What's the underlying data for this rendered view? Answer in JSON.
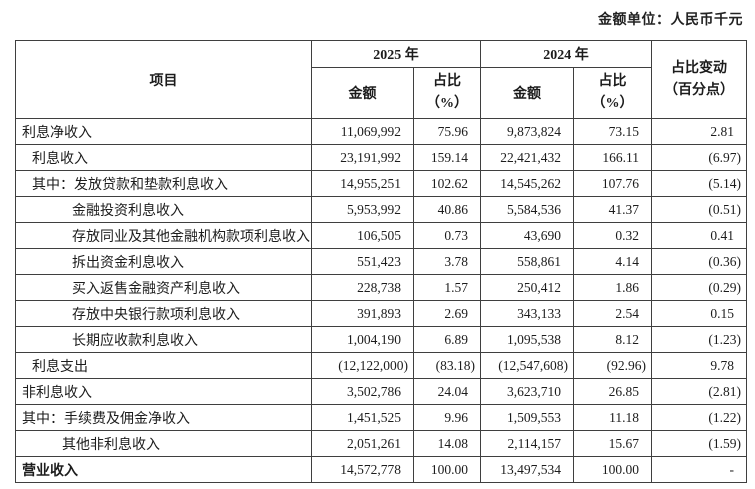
{
  "meta": {
    "unit_note": "金额单位：人民币千元"
  },
  "table": {
    "header": {
      "item": "项目",
      "year_2025": "2025 年",
      "year_2024": "2024 年",
      "amount": "金额",
      "ratio": [
        "占比",
        "（%）"
      ],
      "change": [
        "占比变动",
        "（百分点）"
      ]
    },
    "rows": [
      {
        "label": "利息净收入",
        "indent": 0,
        "bold": false,
        "amount_2025": "11,069,992",
        "ratio_2025": "75.96",
        "amount_2024": "9,873,824",
        "ratio_2024": "73.15",
        "change": "2.81"
      },
      {
        "label": "利息收入",
        "indent": 1,
        "bold": false,
        "amount_2025": "23,191,992",
        "ratio_2025": "159.14",
        "amount_2024": "22,421,432",
        "ratio_2024": "166.11",
        "change": "(6.97)"
      },
      {
        "label": "其中：发放贷款和垫款利息收入",
        "indent": 1,
        "bold": false,
        "amount_2025": "14,955,251",
        "ratio_2025": "102.62",
        "amount_2024": "14,545,262",
        "ratio_2024": "107.76",
        "change": "(5.14)"
      },
      {
        "label": "金融投资利息收入",
        "indent": 2,
        "bold": false,
        "amount_2025": "5,953,992",
        "ratio_2025": "40.86",
        "amount_2024": "5,584,536",
        "ratio_2024": "41.37",
        "change": "(0.51)"
      },
      {
        "label": "存放同业及其他金融机构款项利息收入",
        "indent": 2,
        "bold": false,
        "amount_2025": "106,505",
        "ratio_2025": "0.73",
        "amount_2024": "43,690",
        "ratio_2024": "0.32",
        "change": "0.41"
      },
      {
        "label": "拆出资金利息收入",
        "indent": 2,
        "bold": false,
        "amount_2025": "551,423",
        "ratio_2025": "3.78",
        "amount_2024": "558,861",
        "ratio_2024": "4.14",
        "change": "(0.36)"
      },
      {
        "label": "买入返售金融资产利息收入",
        "indent": 2,
        "bold": false,
        "amount_2025": "228,738",
        "ratio_2025": "1.57",
        "amount_2024": "250,412",
        "ratio_2024": "1.86",
        "change": "(0.29)"
      },
      {
        "label": "存放中央银行款项利息收入",
        "indent": 2,
        "bold": false,
        "amount_2025": "391,893",
        "ratio_2025": "2.69",
        "amount_2024": "343,133",
        "ratio_2024": "2.54",
        "change": "0.15"
      },
      {
        "label": "长期应收款利息收入",
        "indent": 2,
        "bold": false,
        "amount_2025": "1,004,190",
        "ratio_2025": "6.89",
        "amount_2024": "1,095,538",
        "ratio_2024": "8.12",
        "change": "(1.23)"
      },
      {
        "label": "利息支出",
        "indent": 1,
        "bold": false,
        "amount_2025": "(12,122,000)",
        "ratio_2025": "(83.18)",
        "amount_2024": "(12,547,608)",
        "ratio_2024": "(92.96)",
        "change": "9.78"
      },
      {
        "label": "非利息收入",
        "indent": 0,
        "bold": false,
        "amount_2025": "3,502,786",
        "ratio_2025": "24.04",
        "amount_2024": "3,623,710",
        "ratio_2024": "26.85",
        "change": "(2.81)"
      },
      {
        "label": "其中：手续费及佣金净收入",
        "indent": 0,
        "bold": false,
        "amount_2025": "1,451,525",
        "ratio_2025": "9.96",
        "amount_2024": "1,509,553",
        "ratio_2024": "11.18",
        "change": "(1.22)"
      },
      {
        "label": "其他非利息收入",
        "indent": 3,
        "bold": false,
        "amount_2025": "2,051,261",
        "ratio_2025": "14.08",
        "amount_2024": "2,114,157",
        "ratio_2024": "15.67",
        "change": "(1.59)"
      },
      {
        "label": "营业收入",
        "indent": 0,
        "bold": true,
        "amount_2025": "14,572,778",
        "ratio_2025": "100.00",
        "amount_2024": "13,497,534",
        "ratio_2024": "100.00",
        "change": "-"
      }
    ]
  }
}
